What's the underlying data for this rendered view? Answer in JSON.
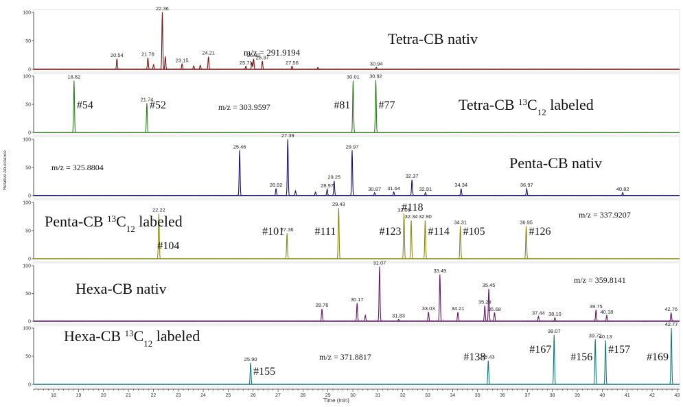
{
  "chart_data": {
    "type": "line",
    "xlabel": "Time (min)",
    "ylabel": "Relative Abundance",
    "xlim": [
      17.2,
      43.1
    ],
    "ylim": [
      0,
      100
    ],
    "xticks": [
      18,
      19,
      20,
      21,
      22,
      23,
      24,
      25,
      26,
      27,
      28,
      29,
      30,
      31,
      32,
      33,
      34,
      35,
      36,
      37,
      38,
      39,
      40,
      41,
      42,
      43
    ],
    "yticks": [
      0,
      50,
      100
    ],
    "panels": [
      {
        "name": "Tetra-CB nativ",
        "color": "#7a1414",
        "title": "Tetra-CB nativ",
        "mz": "m/z = 291.9194",
        "peaks": [
          {
            "x": 20.54,
            "y": 18,
            "label": "20.54"
          },
          {
            "x": 21.78,
            "y": 20,
            "label": "21.78"
          },
          {
            "x": 22.01,
            "y": 8,
            "label": ""
          },
          {
            "x": 22.36,
            "y": 100,
            "label": "22.36"
          },
          {
            "x": 22.48,
            "y": 22,
            "label": ""
          },
          {
            "x": 23.15,
            "y": 9,
            "label": "23.15"
          },
          {
            "x": 23.62,
            "y": 6,
            "label": ""
          },
          {
            "x": 23.88,
            "y": 7,
            "label": ""
          },
          {
            "x": 24.21,
            "y": 22,
            "label": "24.21"
          },
          {
            "x": 25.71,
            "y": 5,
            "label": "25.71"
          },
          {
            "x": 25.95,
            "y": 12,
            "label": ""
          },
          {
            "x": 26.02,
            "y": 18,
            "label": "26.02"
          },
          {
            "x": 26.37,
            "y": 14,
            "label": "26.37"
          },
          {
            "x": 27.56,
            "y": 5,
            "label": "27.56"
          },
          {
            "x": 28.6,
            "y": 3,
            "label": ""
          },
          {
            "x": 30.94,
            "y": 3,
            "label": "30.94"
          }
        ]
      },
      {
        "name": "Tetra-CB 13C12 labeled",
        "color": "#2e7d1f",
        "title": "Tetra-CB ",
        "title_sup": "13",
        "title_mid": "C",
        "title_sub": "12",
        "title_end": " labeled",
        "mz": "m/z = 303.9597",
        "peaks": [
          {
            "x": 18.82,
            "y": 92,
            "label": "18.82",
            "tag": "#54"
          },
          {
            "x": 21.74,
            "y": 52,
            "label": "21.74",
            "tag": "#52"
          },
          {
            "x": 30.01,
            "y": 92,
            "label": "30.01",
            "tag": "#81"
          },
          {
            "x": 30.92,
            "y": 93,
            "label": "30.92",
            "tag": "#77"
          }
        ]
      },
      {
        "name": "Penta-CB nativ",
        "color": "#141470",
        "title": "Penta-CB nativ",
        "mz": "m/z = 325.8804",
        "peaks": [
          {
            "x": 25.46,
            "y": 80,
            "label": "25.46"
          },
          {
            "x": 26.92,
            "y": 12,
            "label": "26.92"
          },
          {
            "x": 27.39,
            "y": 100,
            "label": "27.39"
          },
          {
            "x": 27.7,
            "y": 8,
            "label": ""
          },
          {
            "x": 28.5,
            "y": 6,
            "label": ""
          },
          {
            "x": 28.97,
            "y": 11,
            "label": "28.97"
          },
          {
            "x": 29.25,
            "y": 26,
            "label": "29.25"
          },
          {
            "x": 29.97,
            "y": 80,
            "label": "29.97"
          },
          {
            "x": 30.87,
            "y": 5,
            "label": "30.87"
          },
          {
            "x": 31.64,
            "y": 6,
            "label": "31.64"
          },
          {
            "x": 32.37,
            "y": 28,
            "label": "32.37"
          },
          {
            "x": 32.91,
            "y": 5,
            "label": "32.91"
          },
          {
            "x": 34.34,
            "y": 12,
            "label": "34.34"
          },
          {
            "x": 36.97,
            "y": 12,
            "label": "36.97"
          },
          {
            "x": 40.82,
            "y": 5,
            "label": "40.82"
          }
        ]
      },
      {
        "name": "Penta-CB 13C12 labeled",
        "color": "#8a8a14",
        "title": "Penta-CB ",
        "title_sup": "13",
        "title_mid": "C",
        "title_sub": "12",
        "title_end": " labeled",
        "mz": "m/z = 337.9207",
        "peaks": [
          {
            "x": 22.22,
            "y": 80,
            "label": "22.22",
            "tag": "#104"
          },
          {
            "x": 27.36,
            "y": 45,
            "label": "27.36",
            "tag": "#101"
          },
          {
            "x": 29.43,
            "y": 90,
            "label": "29.43",
            "tag": "#111"
          },
          {
            "x": 32.05,
            "y": 80,
            "label": "32.05",
            "tag": "#123"
          },
          {
            "x": 32.34,
            "y": 68,
            "label": "32.34",
            "tag": "#118"
          },
          {
            "x": 32.9,
            "y": 68,
            "label": "32.90",
            "tag": "#114"
          },
          {
            "x": 34.31,
            "y": 58,
            "label": "34.31",
            "tag": "#105"
          },
          {
            "x": 36.95,
            "y": 58,
            "label": "36.95",
            "tag": "#126"
          }
        ]
      },
      {
        "name": "Hexa-CB nativ",
        "color": "#6a1470",
        "title": "Hexa-CB nativ",
        "mz": "m/z = 359.8141",
        "peaks": [
          {
            "x": 28.76,
            "y": 22,
            "label": "28.76"
          },
          {
            "x": 30.17,
            "y": 32,
            "label": "30.17"
          },
          {
            "x": 30.5,
            "y": 10,
            "label": ""
          },
          {
            "x": 31.07,
            "y": 98,
            "label": "31.07"
          },
          {
            "x": 31.83,
            "y": 3,
            "label": "31.83"
          },
          {
            "x": 33.03,
            "y": 16,
            "label": "33.03"
          },
          {
            "x": 33.49,
            "y": 84,
            "label": "33.49"
          },
          {
            "x": 34.21,
            "y": 16,
            "label": "34.21"
          },
          {
            "x": 35.29,
            "y": 28,
            "label": "35.29"
          },
          {
            "x": 35.45,
            "y": 58,
            "label": "35.45"
          },
          {
            "x": 35.68,
            "y": 15,
            "label": "35.68"
          },
          {
            "x": 37.44,
            "y": 8,
            "label": "37.44"
          },
          {
            "x": 38.1,
            "y": 6,
            "label": "38.10"
          },
          {
            "x": 39.75,
            "y": 20,
            "label": "39.75"
          },
          {
            "x": 40.18,
            "y": 10,
            "label": "40.18"
          },
          {
            "x": 42.76,
            "y": 15,
            "label": "42.76"
          }
        ]
      },
      {
        "name": "Hexa-CB 13C12 labeled",
        "color": "#147a7a",
        "title": "Hexa-CB ",
        "title_sup": "13",
        "title_mid": "C",
        "title_sub": "12",
        "title_end": " labeled",
        "mz": "m/z = 371.8817",
        "peaks": [
          {
            "x": 25.9,
            "y": 38,
            "label": "25.90",
            "tag": "#155"
          },
          {
            "x": 35.43,
            "y": 42,
            "label": "35.43",
            "tag": "#138"
          },
          {
            "x": 38.07,
            "y": 88,
            "label": "38.07",
            "tag": "#167"
          },
          {
            "x": 39.72,
            "y": 80,
            "label": "39.72",
            "tag": "#156"
          },
          {
            "x": 40.13,
            "y": 78,
            "label": "40.13",
            "tag": "#157"
          },
          {
            "x": 42.77,
            "y": 100,
            "label": "42.77",
            "tag": "#169"
          }
        ]
      }
    ]
  }
}
